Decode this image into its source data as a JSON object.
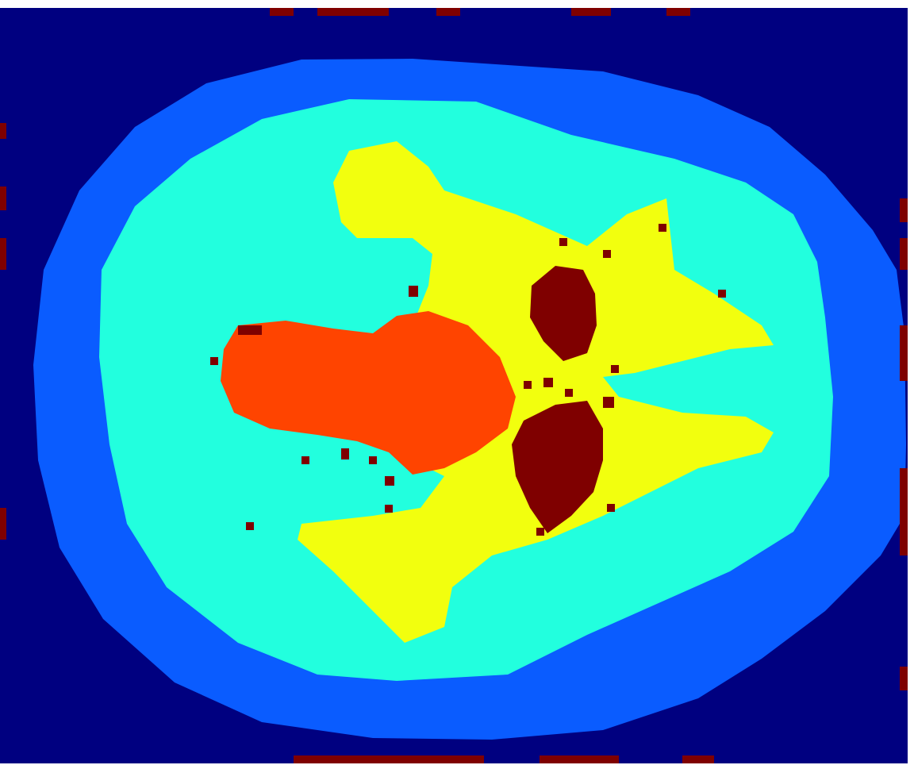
{
  "image": {
    "kind": "segmentation-label-map",
    "colormap": "jet",
    "colors": {
      "background": "#000080",
      "outer_ring": "#0a5cff",
      "inner_region": "#22ffde",
      "yellow_region": "#f2ff0e",
      "orange_region": "#ff4400",
      "dark_red_region": "#7f0000"
    }
  }
}
